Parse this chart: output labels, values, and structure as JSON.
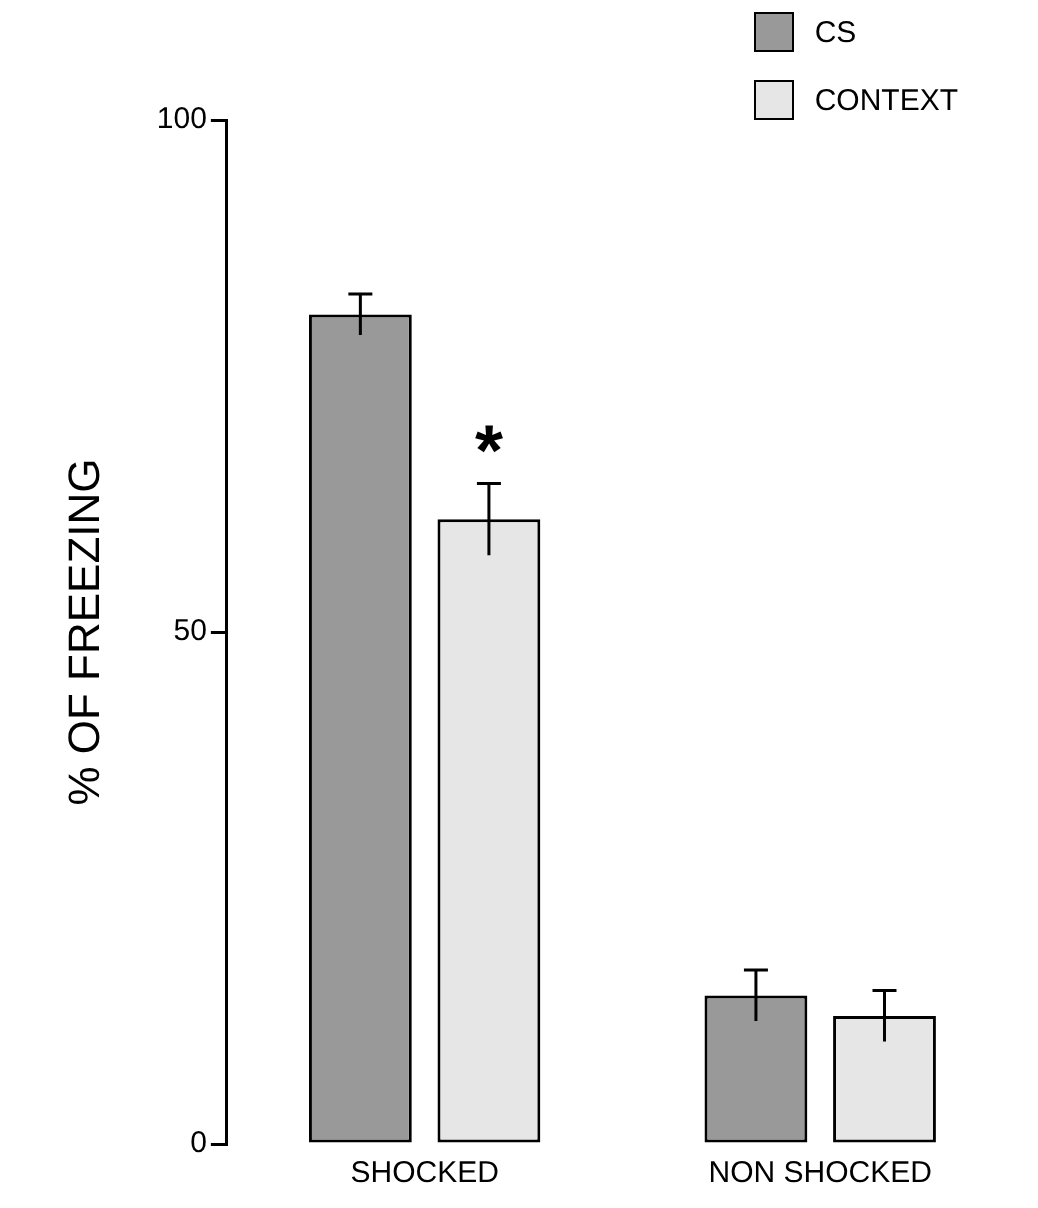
{
  "chart_data": {
    "type": "bar",
    "ylabel": "% OF FREEZING",
    "categories": [
      "SHOCKED",
      "NON SHOCKED"
    ],
    "series": [
      {
        "name": "CS",
        "color": "#999999",
        "values": [
          81,
          14.5
        ],
        "errors": [
          2,
          2.5
        ]
      },
      {
        "name": "CONTEXT",
        "color": "#e6e6e6",
        "values": [
          61,
          12.5
        ],
        "errors": [
          3.5,
          2.5
        ],
        "value_labels": [
          "*",
          null
        ]
      }
    ],
    "ylim": [
      0,
      100
    ],
    "yticks": [
      0,
      50,
      100
    ],
    "grid": false,
    "legend": "top right"
  }
}
